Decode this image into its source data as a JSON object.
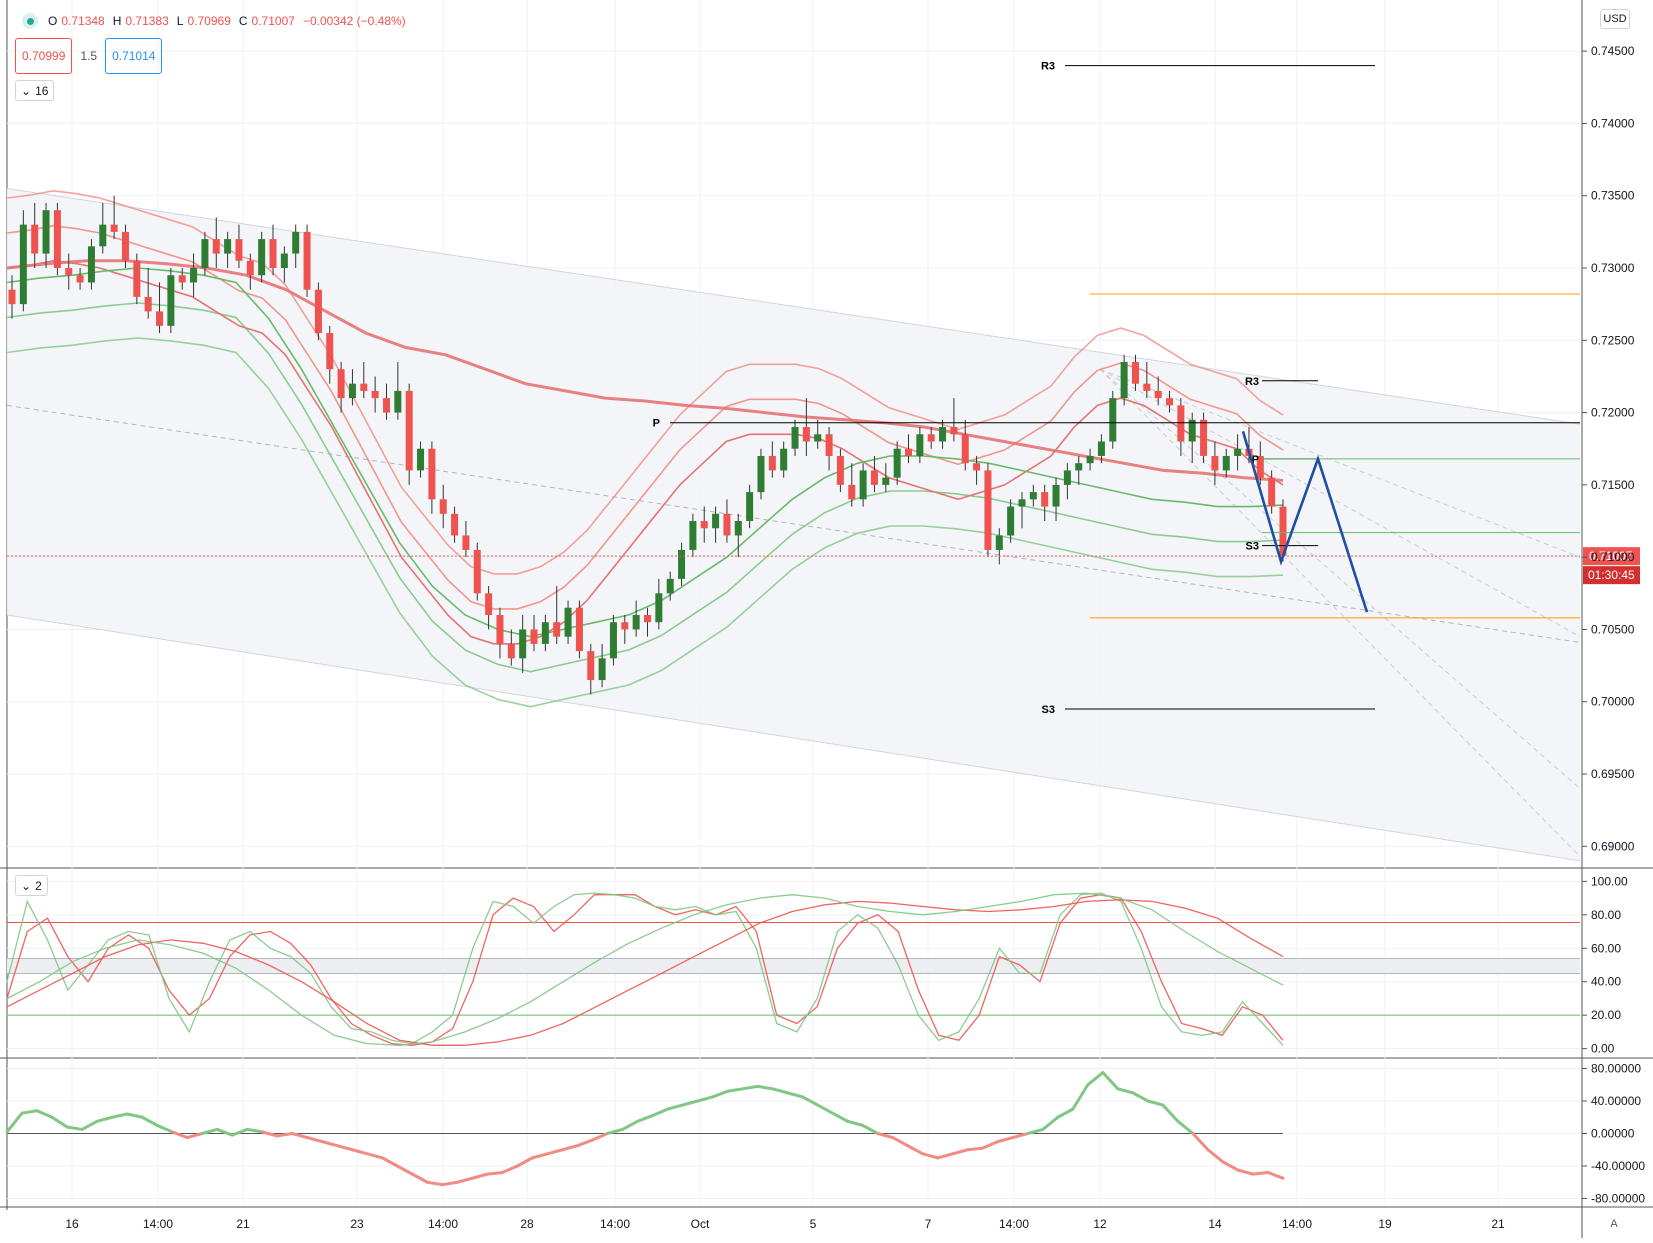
{
  "header": {
    "o_label": "O",
    "o_value": "0.71348",
    "h_label": "H",
    "h_value": "0.71383",
    "l_label": "L",
    "l_value": "0.70969",
    "c_label": "C",
    "c_value": "0.71007",
    "change": "−0.00342 (−0.48%)",
    "sell_price": "0.70999",
    "spread": "1.5",
    "buy_price": "0.71014",
    "pane_main_toggle": "16",
    "pane_osc_toggle": "2",
    "currency": "USD",
    "auto_scale": "A"
  },
  "colors": {
    "up": "#26a69a",
    "up_candle": "#2e7d32",
    "down": "#ef5350",
    "band_red": "#f28b82",
    "band_green": "#81c784",
    "blue_projection": "#1e4fa0",
    "orange_level": "#ff9800"
  },
  "chart_data": [
    {
      "type": "candlestick",
      "symbol_currency": "USD",
      "y_ticks": [
        "0.74500",
        "0.74000",
        "0.73500",
        "0.73000",
        "0.72500",
        "0.72000",
        "0.71500",
        "0.71000",
        "0.70500",
        "0.70000",
        "0.69500",
        "0.69000"
      ],
      "ylim": [
        0.6885,
        0.7475
      ],
      "x_ticks": [
        "16",
        "14:00",
        "21",
        "23",
        "14:00",
        "28",
        "14:00",
        "Oct",
        "5",
        "7",
        "14:00",
        "12",
        "14",
        "14:00",
        "19",
        "21"
      ],
      "last_price": "0.71007",
      "countdown": "01:30:45",
      "ohlc_last": {
        "open": 0.71348,
        "high": 0.71383,
        "low": 0.70969,
        "close": 0.71007
      },
      "candles": [
        [
          0.7285,
          0.7295,
          0.7265,
          0.7275
        ],
        [
          0.7275,
          0.734,
          0.727,
          0.733
        ],
        [
          0.733,
          0.7345,
          0.73,
          0.731
        ],
        [
          0.731,
          0.7345,
          0.73,
          0.734
        ],
        [
          0.734,
          0.7345,
          0.7295,
          0.73
        ],
        [
          0.73,
          0.731,
          0.7285,
          0.7295
        ],
        [
          0.7295,
          0.73,
          0.7285,
          0.729
        ],
        [
          0.729,
          0.732,
          0.7285,
          0.7315
        ],
        [
          0.7315,
          0.7345,
          0.731,
          0.733
        ],
        [
          0.733,
          0.735,
          0.732,
          0.7325
        ],
        [
          0.7325,
          0.733,
          0.73,
          0.7305
        ],
        [
          0.7305,
          0.731,
          0.7275,
          0.728
        ],
        [
          0.728,
          0.73,
          0.7265,
          0.727
        ],
        [
          0.727,
          0.729,
          0.7255,
          0.726
        ],
        [
          0.726,
          0.73,
          0.7255,
          0.7295
        ],
        [
          0.7295,
          0.73,
          0.7285,
          0.729
        ],
        [
          0.729,
          0.731,
          0.728,
          0.73
        ],
        [
          0.73,
          0.7325,
          0.7295,
          0.732
        ],
        [
          0.732,
          0.7335,
          0.73,
          0.731
        ],
        [
          0.731,
          0.7325,
          0.73,
          0.732
        ],
        [
          0.732,
          0.733,
          0.73,
          0.7305
        ],
        [
          0.7305,
          0.731,
          0.7285,
          0.7295
        ],
        [
          0.7295,
          0.7325,
          0.729,
          0.732
        ],
        [
          0.732,
          0.733,
          0.7295,
          0.73
        ],
        [
          0.73,
          0.7315,
          0.729,
          0.731
        ],
        [
          0.731,
          0.733,
          0.73,
          0.7325
        ],
        [
          0.7325,
          0.733,
          0.728,
          0.7285
        ],
        [
          0.7285,
          0.729,
          0.725,
          0.7255
        ],
        [
          0.7255,
          0.726,
          0.722,
          0.723
        ],
        [
          0.723,
          0.7235,
          0.72,
          0.721
        ],
        [
          0.721,
          0.723,
          0.7205,
          0.722
        ],
        [
          0.722,
          0.7235,
          0.721,
          0.7215
        ],
        [
          0.7215,
          0.7225,
          0.72,
          0.721
        ],
        [
          0.721,
          0.722,
          0.7195,
          0.72
        ],
        [
          0.72,
          0.7235,
          0.7195,
          0.7215
        ],
        [
          0.7215,
          0.722,
          0.715,
          0.716
        ],
        [
          0.716,
          0.718,
          0.7155,
          0.7175
        ],
        [
          0.7175,
          0.718,
          0.713,
          0.714
        ],
        [
          0.714,
          0.715,
          0.712,
          0.713
        ],
        [
          0.713,
          0.7135,
          0.711,
          0.7115
        ],
        [
          0.7115,
          0.7125,
          0.71,
          0.7105
        ],
        [
          0.7105,
          0.711,
          0.707,
          0.7075
        ],
        [
          0.7075,
          0.708,
          0.705,
          0.706
        ],
        [
          0.706,
          0.7065,
          0.703,
          0.704
        ],
        [
          0.704,
          0.705,
          0.7025,
          0.703
        ],
        [
          0.703,
          0.706,
          0.702,
          0.705
        ],
        [
          0.705,
          0.706,
          0.7035,
          0.704
        ],
        [
          0.704,
          0.706,
          0.7035,
          0.7055
        ],
        [
          0.7055,
          0.708,
          0.704,
          0.7045
        ],
        [
          0.7045,
          0.707,
          0.704,
          0.7065
        ],
        [
          0.7065,
          0.707,
          0.703,
          0.7035
        ],
        [
          0.7035,
          0.704,
          0.7005,
          0.7015
        ],
        [
          0.7015,
          0.704,
          0.701,
          0.703
        ],
        [
          0.703,
          0.706,
          0.7025,
          0.7055
        ],
        [
          0.7055,
          0.706,
          0.704,
          0.705
        ],
        [
          0.705,
          0.707,
          0.7045,
          0.706
        ],
        [
          0.706,
          0.7065,
          0.7045,
          0.7055
        ],
        [
          0.7055,
          0.7085,
          0.705,
          0.7075
        ],
        [
          0.7075,
          0.709,
          0.707,
          0.7085
        ],
        [
          0.7085,
          0.711,
          0.708,
          0.7105
        ],
        [
          0.7105,
          0.713,
          0.71,
          0.7125
        ],
        [
          0.7125,
          0.7135,
          0.711,
          0.712
        ],
        [
          0.712,
          0.7135,
          0.711,
          0.713
        ],
        [
          0.713,
          0.714,
          0.711,
          0.7115
        ],
        [
          0.7115,
          0.713,
          0.71,
          0.7125
        ],
        [
          0.7125,
          0.715,
          0.712,
          0.7145
        ],
        [
          0.7145,
          0.7175,
          0.714,
          0.717
        ],
        [
          0.717,
          0.718,
          0.7155,
          0.716
        ],
        [
          0.716,
          0.718,
          0.7155,
          0.7175
        ],
        [
          0.7175,
          0.7195,
          0.717,
          0.719
        ],
        [
          0.719,
          0.721,
          0.717,
          0.718
        ],
        [
          0.718,
          0.7195,
          0.7175,
          0.7185
        ],
        [
          0.7185,
          0.719,
          0.716,
          0.717
        ],
        [
          0.717,
          0.7175,
          0.7145,
          0.715
        ],
        [
          0.715,
          0.7165,
          0.7135,
          0.714
        ],
        [
          0.714,
          0.7165,
          0.7135,
          0.716
        ],
        [
          0.716,
          0.717,
          0.7145,
          0.715
        ],
        [
          0.715,
          0.7165,
          0.7145,
          0.7155
        ],
        [
          0.7155,
          0.718,
          0.715,
          0.7175
        ],
        [
          0.7175,
          0.7185,
          0.7165,
          0.717
        ],
        [
          0.717,
          0.719,
          0.7165,
          0.7185
        ],
        [
          0.7185,
          0.719,
          0.7175,
          0.718
        ],
        [
          0.718,
          0.7195,
          0.7175,
          0.719
        ],
        [
          0.719,
          0.721,
          0.718,
          0.7185
        ],
        [
          0.7185,
          0.7195,
          0.716,
          0.7165
        ],
        [
          0.7165,
          0.717,
          0.715,
          0.716
        ],
        [
          0.716,
          0.7165,
          0.71,
          0.7105
        ],
        [
          0.7105,
          0.712,
          0.7095,
          0.7115
        ],
        [
          0.7115,
          0.714,
          0.711,
          0.7135
        ],
        [
          0.7135,
          0.7145,
          0.712,
          0.714
        ],
        [
          0.714,
          0.715,
          0.7135,
          0.7145
        ],
        [
          0.7145,
          0.715,
          0.7125,
          0.7135
        ],
        [
          0.7135,
          0.7155,
          0.7125,
          0.715
        ],
        [
          0.715,
          0.7165,
          0.714,
          0.716
        ],
        [
          0.716,
          0.717,
          0.715,
          0.7165
        ],
        [
          0.7165,
          0.7175,
          0.716,
          0.717
        ],
        [
          0.717,
          0.7185,
          0.7165,
          0.718
        ],
        [
          0.718,
          0.7215,
          0.7175,
          0.721
        ],
        [
          0.721,
          0.724,
          0.7205,
          0.7235
        ],
        [
          0.7235,
          0.724,
          0.7215,
          0.722
        ],
        [
          0.722,
          0.7235,
          0.721,
          0.7215
        ],
        [
          0.7215,
          0.7225,
          0.7205,
          0.721
        ],
        [
          0.721,
          0.7215,
          0.72,
          0.7205
        ],
        [
          0.7205,
          0.721,
          0.717,
          0.718
        ],
        [
          0.718,
          0.72,
          0.7165,
          0.7195
        ],
        [
          0.7195,
          0.72,
          0.7165,
          0.717
        ],
        [
          0.717,
          0.718,
          0.715,
          0.716
        ],
        [
          0.716,
          0.7175,
          0.7155,
          0.717
        ],
        [
          0.717,
          0.7185,
          0.716,
          0.7175
        ],
        [
          0.7175,
          0.719,
          0.7165,
          0.717
        ],
        [
          0.717,
          0.718,
          0.715,
          0.7155
        ],
        [
          0.7155,
          0.716,
          0.713,
          0.7135
        ],
        [
          0.7135,
          0.714,
          0.7097,
          0.7101
        ]
      ],
      "ma_red_fast": [
        0.73,
        0.7302,
        0.7305,
        0.7303,
        0.73,
        0.7295,
        0.729,
        0.7285,
        0.728,
        0.727,
        0.726,
        0.7255,
        0.724,
        0.7215,
        0.719,
        0.716,
        0.713,
        0.71,
        0.708,
        0.706,
        0.7045,
        0.704,
        0.704,
        0.7045,
        0.7055,
        0.707,
        0.709,
        0.711,
        0.713,
        0.715,
        0.7165,
        0.718,
        0.7185,
        0.7185,
        0.7185,
        0.7182,
        0.7175,
        0.7165,
        0.7155,
        0.715,
        0.7145,
        0.714,
        0.7145,
        0.715,
        0.716,
        0.717,
        0.719,
        0.7205,
        0.721,
        0.7205,
        0.7195,
        0.7185,
        0.718,
        0.7175,
        0.716,
        0.715
      ],
      "ma_red_slow": [
        0.73,
        0.7303,
        0.7305,
        0.7305,
        0.7303,
        0.73,
        0.7295,
        0.7285,
        0.727,
        0.7255,
        0.7245,
        0.724,
        0.723,
        0.722,
        0.7215,
        0.721,
        0.7208,
        0.7205,
        0.7203,
        0.72,
        0.7197,
        0.7195,
        0.7193,
        0.719,
        0.7185,
        0.718,
        0.7175,
        0.717,
        0.7165,
        0.716,
        0.7158,
        0.7155,
        0.7153
      ],
      "ma_green": [
        0.729,
        0.7293,
        0.7295,
        0.7298,
        0.73,
        0.7298,
        0.7295,
        0.729,
        0.7265,
        0.723,
        0.719,
        0.715,
        0.711,
        0.708,
        0.706,
        0.705,
        0.7045,
        0.705,
        0.7055,
        0.706,
        0.707,
        0.7085,
        0.71,
        0.712,
        0.714,
        0.7155,
        0.7165,
        0.717,
        0.717,
        0.7168,
        0.7165,
        0.716,
        0.7155,
        0.715,
        0.7145,
        0.714,
        0.7138,
        0.7135,
        0.7135,
        0.7136
      ],
      "pivot_levels": [
        {
          "label": "R3",
          "value": 0.744
        },
        {
          "label": "P",
          "value": 0.7193
        },
        {
          "label": "S3",
          "value": 0.6995
        },
        {
          "label": "R3",
          "value": 0.7222
        },
        {
          "label": "P",
          "value": 0.7168
        },
        {
          "label": "S3",
          "value": 0.7108
        }
      ],
      "orange_levels": [
        0.7282,
        0.7058
      ],
      "green_levels": [
        0.7117,
        0.7168
      ],
      "projection_path": [
        0.7187,
        0.7097,
        0.7168,
        0.7062
      ]
    },
    {
      "type": "line",
      "name": "oscillator",
      "y_ticks": [
        "100.00",
        "80.00",
        "60.00",
        "40.00",
        "20.00",
        "0.00"
      ],
      "ylim": [
        -5,
        105
      ],
      "levels": [
        75.4,
        53.9,
        45.0,
        20.0
      ],
      "series": [
        {
          "color": "#ef5350",
          "values": [
            30,
            70,
            78,
            55,
            40,
            60,
            68,
            60,
            35,
            20,
            30,
            55,
            68,
            70,
            63,
            50,
            30,
            15,
            8,
            3,
            2,
            4,
            12,
            40,
            80,
            90,
            85,
            70,
            80,
            92,
            92,
            92,
            85,
            80,
            83,
            80,
            85,
            70,
            20,
            15,
            25,
            60,
            75,
            80,
            70,
            35,
            8,
            5,
            20,
            55,
            50,
            40,
            75,
            90,
            92,
            90,
            70,
            40,
            15,
            12,
            8,
            25,
            20,
            5
          ]
        },
        {
          "color": "#81c784",
          "values": [
            40,
            88,
            65,
            35,
            50,
            65,
            70,
            68,
            30,
            10,
            40,
            65,
            70,
            60,
            55,
            45,
            25,
            12,
            10,
            5,
            3,
            10,
            20,
            60,
            88,
            85,
            75,
            85,
            92,
            93,
            92,
            90,
            85,
            83,
            85,
            80,
            82,
            60,
            15,
            10,
            30,
            70,
            80,
            72,
            50,
            20,
            5,
            10,
            30,
            60,
            45,
            45,
            80,
            92,
            93,
            88,
            60,
            25,
            10,
            8,
            10,
            28,
            15,
            2
          ]
        },
        {
          "color": "#ef5350",
          "values": [
            25,
            35,
            45,
            55,
            62,
            65,
            63,
            58,
            50,
            40,
            28,
            15,
            5,
            2,
            2,
            4,
            8,
            15,
            25,
            35,
            45,
            55,
            65,
            75,
            82,
            86,
            88,
            87,
            85,
            83,
            82,
            83,
            85,
            88,
            89,
            88,
            84,
            78,
            66,
            55
          ]
        },
        {
          "color": "#81c784",
          "values": [
            30,
            40,
            52,
            60,
            65,
            62,
            57,
            48,
            35,
            20,
            8,
            3,
            2,
            4,
            10,
            18,
            28,
            40,
            52,
            63,
            72,
            80,
            86,
            90,
            92,
            90,
            85,
            82,
            80,
            82,
            85,
            88,
            92,
            93,
            90,
            83,
            70,
            58,
            48,
            38
          ]
        }
      ]
    },
    {
      "type": "line",
      "name": "momentum",
      "y_ticks": [
        "80.00000",
        "40.00000",
        "0.00000",
        "-40.00000",
        "-80.00000"
      ],
      "ylim": [
        -88,
        88
      ],
      "zero_line": 0,
      "values": [
        2,
        25,
        28,
        20,
        8,
        5,
        15,
        20,
        24,
        20,
        10,
        2,
        -5,
        0,
        5,
        -2,
        5,
        2,
        -3,
        0,
        -5,
        -10,
        -15,
        -20,
        -25,
        -30,
        -40,
        -50,
        -60,
        -63,
        -60,
        -55,
        -50,
        -48,
        -40,
        -30,
        -25,
        -20,
        -15,
        -8,
        0,
        5,
        15,
        22,
        30,
        35,
        40,
        45,
        52,
        55,
        58,
        55,
        50,
        45,
        35,
        25,
        15,
        10,
        0,
        -5,
        -15,
        -25,
        -30,
        -25,
        -20,
        -18,
        -10,
        -5,
        0,
        5,
        20,
        30,
        60,
        75,
        55,
        50,
        40,
        35,
        15,
        0,
        -20,
        -35,
        -45,
        -50,
        -48,
        -55
      ]
    }
  ]
}
